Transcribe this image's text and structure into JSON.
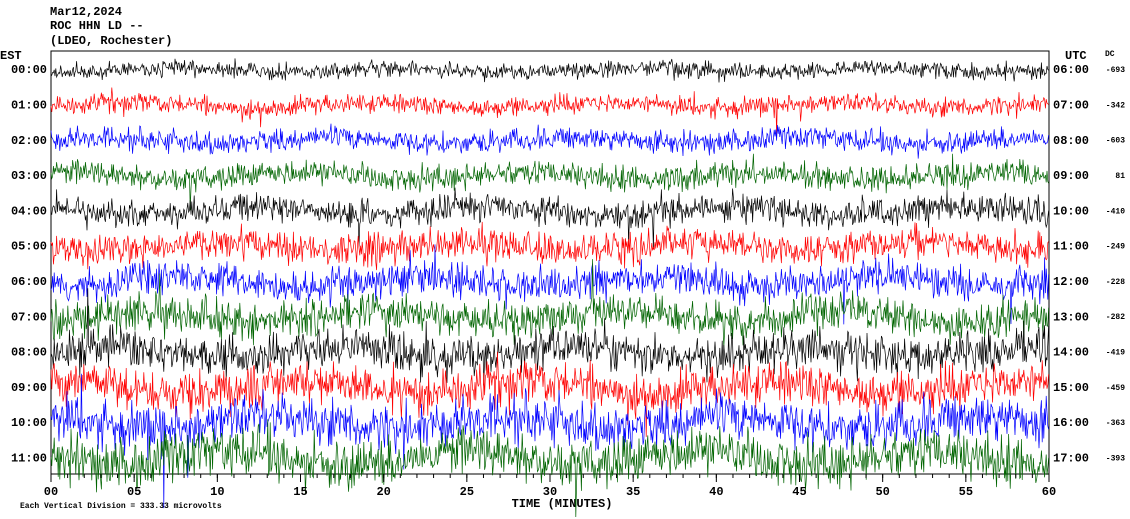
{
  "chart_data": {
    "type": "helicorder",
    "title_lines": [
      "Mar12,2024",
      "ROC HHN LD --",
      "(LDEO, Rochester)"
    ],
    "left_axis_label": "EST",
    "right_axis_label": "UTC",
    "dc_label": "DC",
    "rows": [
      {
        "est": "00:00",
        "utc": "06:00",
        "dc": -693
      },
      {
        "est": "01:00",
        "utc": "07:00",
        "dc": -342
      },
      {
        "est": "02:00",
        "utc": "08:00",
        "dc": -603
      },
      {
        "est": "03:00",
        "utc": "09:00",
        "dc": 81
      },
      {
        "est": "04:00",
        "utc": "10:00",
        "dc": -410
      },
      {
        "est": "05:00",
        "utc": "11:00",
        "dc": -249
      },
      {
        "est": "06:00",
        "utc": "12:00",
        "dc": -228
      },
      {
        "est": "07:00",
        "utc": "13:00",
        "dc": -282
      },
      {
        "est": "08:00",
        "utc": "14:00",
        "dc": -419
      },
      {
        "est": "09:00",
        "utc": "15:00",
        "dc": -459
      },
      {
        "est": "10:00",
        "utc": "16:00",
        "dc": -363
      },
      {
        "est": "11:00",
        "utc": "17:00",
        "dc": -393
      }
    ],
    "trace_colors": [
      "#000000",
      "#ff0000",
      "#0000ff",
      "#006400"
    ],
    "xlabel": "TIME (MINUTES)",
    "xlim": [
      0,
      60
    ],
    "xticks": [
      {
        "value": 0,
        "label": "00"
      },
      {
        "value": 5,
        "label": "05"
      },
      10,
      15,
      20,
      25,
      30,
      35,
      40,
      45,
      50,
      55,
      60
    ],
    "footer": "Each Vertical Division = 333.33 microvolts"
  }
}
